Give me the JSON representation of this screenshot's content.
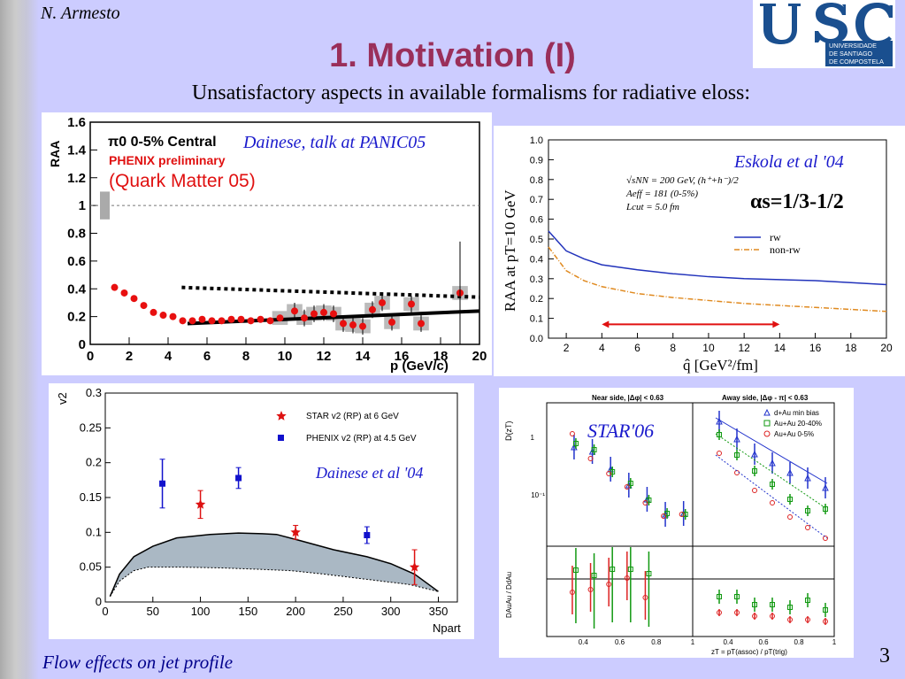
{
  "slide": {
    "author": "N. Armesto",
    "title": "1. Motivation (I)",
    "subtitle": "Unsatisfactory aspects in available formalisms for radiative eloss:",
    "footer_left": "Flow effects on jet profile",
    "page_number": "3"
  },
  "logo": {
    "main": "USC",
    "line1": "UNIVERSIDADE",
    "line2": "DE SANTIAGO",
    "line3": "DE COMPOSTELA",
    "color": "#1a4f8f"
  },
  "annotations": {
    "phenix": "Dainese, talk at PANIC05",
    "eskola": "Eskola et al '04",
    "alpha_s": "αs=1/3-1/2",
    "dainese04": "Dainese et al '04",
    "star06": "STAR'06"
  },
  "chart_data": [
    {
      "type": "scatter",
      "title": "π0 0-5% Central",
      "subtitle": "PHENIX preliminary",
      "note": "(Quark Matter 05)",
      "ylabel": "RAA",
      "xlabel": "p (GeV/c)",
      "xlim": [
        0,
        20
      ],
      "ylim": [
        0,
        1.6
      ],
      "x_ticks": [
        0,
        2,
        4,
        6,
        8,
        10,
        12,
        14,
        16,
        18,
        20
      ],
      "y_ticks": [
        0,
        0.2,
        0.4,
        0.6,
        0.8,
        1,
        1.2,
        1.4,
        1.6
      ],
      "reference_line": 1,
      "points": [
        [
          1.25,
          0.41
        ],
        [
          1.75,
          0.37
        ],
        [
          2.25,
          0.33
        ],
        [
          2.75,
          0.28
        ],
        [
          3.25,
          0.23
        ],
        [
          3.75,
          0.21
        ],
        [
          4.25,
          0.2
        ],
        [
          4.75,
          0.17
        ],
        [
          5.25,
          0.17
        ],
        [
          5.75,
          0.18
        ],
        [
          6.25,
          0.17
        ],
        [
          6.75,
          0.17
        ],
        [
          7.25,
          0.18
        ],
        [
          7.75,
          0.18
        ],
        [
          8.25,
          0.17
        ],
        [
          8.75,
          0.18
        ],
        [
          9.25,
          0.17
        ],
        [
          9.75,
          0.19
        ],
        [
          10.5,
          0.24
        ],
        [
          11,
          0.19
        ],
        [
          11.5,
          0.22
        ],
        [
          12,
          0.23
        ],
        [
          12.5,
          0.22
        ],
        [
          13,
          0.15
        ],
        [
          13.5,
          0.14
        ],
        [
          14,
          0.13
        ],
        [
          14.5,
          0.25
        ],
        [
          15,
          0.3
        ],
        [
          15.5,
          0.16
        ],
        [
          16.5,
          0.29
        ],
        [
          17,
          0.15
        ],
        [
          19,
          0.37
        ]
      ],
      "curves": [
        {
          "style": "dotted",
          "points": [
            [
              4.7,
              0.41
            ],
            [
              20,
              0.34
            ]
          ]
        },
        {
          "style": "solid",
          "points": [
            [
              5,
              0.15
            ],
            [
              20,
              0.24
            ]
          ]
        }
      ]
    },
    {
      "type": "line",
      "ylabel": "RAA at pT=10 GeV",
      "xlabel": "q̂ [GeV²/fm]",
      "xlim": [
        1,
        20
      ],
      "ylim": [
        0,
        1
      ],
      "x_ticks": [
        2,
        4,
        6,
        8,
        10,
        12,
        14,
        16,
        18,
        20
      ],
      "y_ticks": [
        0,
        0.1,
        0.2,
        0.3,
        0.4,
        0.5,
        0.6,
        0.7,
        0.8,
        0.9,
        1.0
      ],
      "labels": [
        "√sNN = 200 GeV, (h⁺+h⁻)/2",
        "Aeff = 181 (0-5%)",
        "Lcut = 5.0 fm"
      ],
      "series": [
        {
          "name": "rw",
          "color": "#2233bb",
          "points": [
            [
              1,
              0.54
            ],
            [
              2,
              0.44
            ],
            [
              3,
              0.4
            ],
            [
              4,
              0.37
            ],
            [
              6,
              0.345
            ],
            [
              8,
              0.325
            ],
            [
              10,
              0.31
            ],
            [
              12,
              0.3
            ],
            [
              14,
              0.295
            ],
            [
              16,
              0.29
            ],
            [
              18,
              0.28
            ],
            [
              20,
              0.27
            ]
          ]
        },
        {
          "name": "non-rw",
          "color": "#e08a20",
          "points": [
            [
              1,
              0.46
            ],
            [
              2,
              0.34
            ],
            [
              3,
              0.29
            ],
            [
              4,
              0.26
            ],
            [
              6,
              0.225
            ],
            [
              8,
              0.205
            ],
            [
              10,
              0.19
            ],
            [
              12,
              0.175
            ],
            [
              14,
              0.165
            ],
            [
              16,
              0.155
            ],
            [
              18,
              0.145
            ],
            [
              20,
              0.135
            ]
          ]
        }
      ],
      "arrow": [
        4,
        14,
        0.07
      ]
    },
    {
      "type": "scatter",
      "ylabel": "v2",
      "xlabel": "Npart",
      "xlim": [
        0,
        370
      ],
      "ylim": [
        0,
        0.3
      ],
      "x_ticks": [
        0,
        50,
        100,
        150,
        200,
        250,
        300,
        350
      ],
      "y_ticks": [
        0,
        0.05,
        0.1,
        0.15,
        0.2,
        0.25,
        0.3
      ],
      "series": [
        {
          "name": "STAR v2 (RP) at 6 GeV",
          "color": "#dd1111",
          "points": [
            [
              100,
              0.14,
              0.02
            ],
            [
              200,
              0.1,
              0.01
            ],
            [
              325,
              0.05,
              0.025
            ]
          ]
        },
        {
          "name": "PHENIX v2 (RP) at 4.5 GeV",
          "color": "#1111cc",
          "points": [
            [
              60,
              0.17,
              0.035
            ],
            [
              140,
              0.178,
              0.015
            ],
            [
              275,
              0.096,
              0.012
            ]
          ]
        }
      ],
      "band_upper": [
        [
          5,
          0.008
        ],
        [
          15,
          0.04
        ],
        [
          30,
          0.065
        ],
        [
          50,
          0.08
        ],
        [
          75,
          0.092
        ],
        [
          110,
          0.097
        ],
        [
          140,
          0.099
        ],
        [
          165,
          0.098
        ],
        [
          180,
          0.097
        ],
        [
          205,
          0.088
        ],
        [
          240,
          0.075
        ],
        [
          275,
          0.065
        ],
        [
          300,
          0.055
        ],
        [
          325,
          0.04
        ],
        [
          350,
          0.015
        ]
      ],
      "band_lower": [
        [
          5,
          0.008
        ],
        [
          15,
          0.03
        ],
        [
          30,
          0.045
        ],
        [
          45,
          0.05
        ],
        [
          80,
          0.05
        ],
        [
          120,
          0.049
        ],
        [
          160,
          0.047
        ],
        [
          195,
          0.045
        ],
        [
          230,
          0.04
        ],
        [
          260,
          0.035
        ],
        [
          290,
          0.03
        ],
        [
          320,
          0.025
        ],
        [
          350,
          0.015
        ]
      ]
    },
    {
      "type": "scatter",
      "panels": [
        "Near side, |Δφ| < 0.63",
        "Away side, |Δφ - π| < 0.63"
      ],
      "ylabel_top": "D(zT)",
      "ylabel_bottom": "DAuAu / DdAu",
      "xlabel": "zT = pT(assoc) / pT(trig)",
      "x_ticks": [
        0.4,
        0.6,
        0.8,
        1
      ],
      "y_ticks_top": [
        "1",
        "10⁻¹"
      ],
      "legend": [
        {
          "name": "d+Au min bias",
          "color": "#2233cc"
        },
        {
          "name": "Au+Au 20-40%",
          "color": "#119911"
        },
        {
          "name": "Au+Au 0-5%",
          "color": "#dd2222"
        }
      ]
    }
  ]
}
